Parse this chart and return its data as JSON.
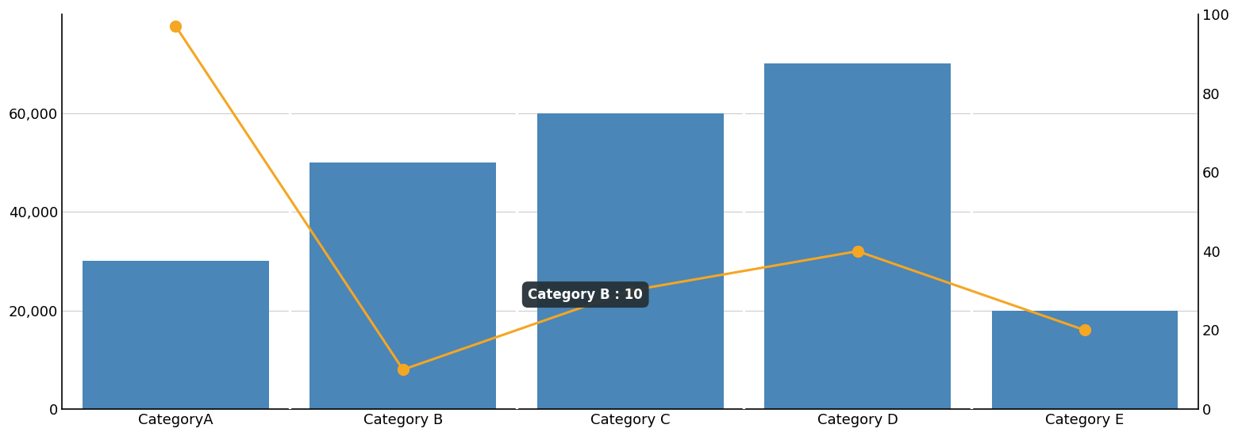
{
  "categories": [
    "CategoryA",
    "Category B",
    "Category C",
    "Category D",
    "Category E"
  ],
  "bar_values": [
    30000,
    50000,
    60000,
    70000,
    20000
  ],
  "line_values": [
    97,
    10,
    30,
    40,
    20
  ],
  "bar_color": "#4a86b8",
  "line_color": "#f5a623",
  "bar_ylim": [
    0,
    80000
  ],
  "line_ylim": [
    0,
    100
  ],
  "bar_yticks": [
    0,
    20000,
    40000,
    60000
  ],
  "line_yticks": [
    0,
    20,
    40,
    60,
    80,
    100
  ],
  "tooltip_text": "Category B : 10",
  "tooltip_index": 1,
  "background_color": "#ffffff",
  "grid_color": "#cccccc",
  "marker_size": 10,
  "line_width": 2.2
}
